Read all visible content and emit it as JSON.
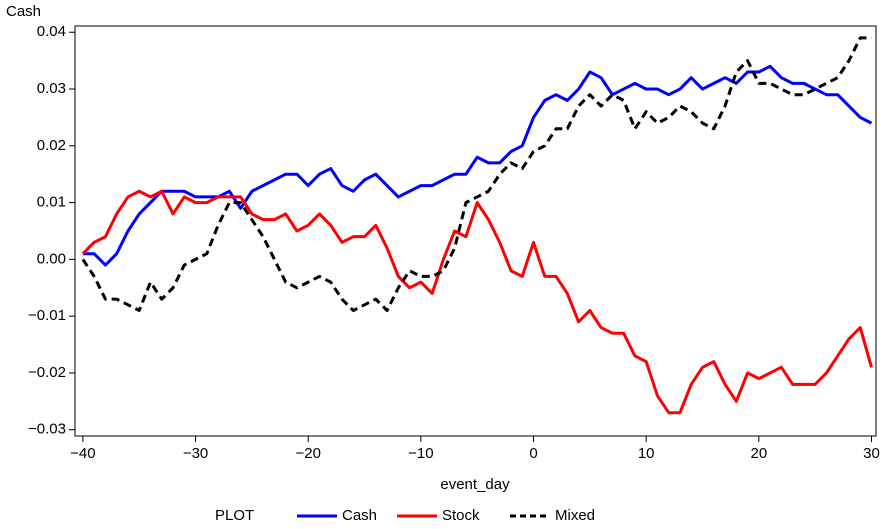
{
  "chart_data": {
    "type": "line",
    "y_label": "Cash",
    "x_label": "event_day",
    "legend_title": "PLOT",
    "x": [
      -40,
      -39,
      -38,
      -37,
      -36,
      -35,
      -34,
      -33,
      -32,
      -31,
      -30,
      -29,
      -28,
      -27,
      -26,
      -25,
      -24,
      -23,
      -22,
      -21,
      -20,
      -19,
      -18,
      -17,
      -16,
      -15,
      -14,
      -13,
      -12,
      -11,
      -10,
      -9,
      -8,
      -7,
      -6,
      -5,
      -4,
      -3,
      -2,
      -1,
      0,
      1,
      2,
      3,
      4,
      5,
      6,
      7,
      8,
      9,
      10,
      11,
      12,
      13,
      14,
      15,
      16,
      17,
      18,
      19,
      20,
      21,
      22,
      23,
      24,
      25,
      26,
      27,
      28,
      29,
      30
    ],
    "series": [
      {
        "name": "Cash",
        "color": "#0000ff",
        "dash": false,
        "values": [
          0.001,
          0.001,
          -0.001,
          0.001,
          0.005,
          0.008,
          0.01,
          0.012,
          0.012,
          0.012,
          0.011,
          0.011,
          0.011,
          0.012,
          0.009,
          0.012,
          0.013,
          0.014,
          0.015,
          0.015,
          0.013,
          0.015,
          0.016,
          0.013,
          0.012,
          0.014,
          0.015,
          0.013,
          0.011,
          0.012,
          0.013,
          0.013,
          0.014,
          0.015,
          0.015,
          0.018,
          0.017,
          0.017,
          0.019,
          0.02,
          0.025,
          0.028,
          0.029,
          0.028,
          0.03,
          0.033,
          0.032,
          0.029,
          0.03,
          0.031,
          0.03,
          0.03,
          0.029,
          0.03,
          0.032,
          0.03,
          0.031,
          0.032,
          0.031,
          0.033,
          0.033,
          0.034,
          0.032,
          0.031,
          0.031,
          0.03,
          0.029,
          0.029,
          0.027,
          0.025,
          0.024
        ]
      },
      {
        "name": "Stock",
        "color": "#ff0000",
        "dash": false,
        "values": [
          0.001,
          0.003,
          0.004,
          0.008,
          0.011,
          0.012,
          0.011,
          0.012,
          0.008,
          0.011,
          0.01,
          0.01,
          0.011,
          0.011,
          0.011,
          0.008,
          0.007,
          0.007,
          0.008,
          0.005,
          0.006,
          0.008,
          0.006,
          0.003,
          0.004,
          0.004,
          0.006,
          0.002,
          -0.003,
          -0.005,
          -0.004,
          -0.006,
          0.0,
          0.005,
          0.004,
          0.01,
          0.007,
          0.003,
          -0.002,
          -0.003,
          0.003,
          -0.003,
          -0.003,
          -0.006,
          -0.011,
          -0.009,
          -0.012,
          -0.013,
          -0.013,
          -0.017,
          -0.018,
          -0.024,
          -0.027,
          -0.027,
          -0.022,
          -0.019,
          -0.018,
          -0.022,
          -0.025,
          -0.02,
          -0.021,
          -0.02,
          -0.019,
          -0.022,
          -0.022,
          -0.022,
          -0.02,
          -0.017,
          -0.014,
          -0.012,
          -0.019
        ]
      },
      {
        "name": "Mixed",
        "color": "#000000",
        "dash": true,
        "values": [
          0.0,
          -0.003,
          -0.007,
          -0.007,
          -0.008,
          -0.009,
          -0.004,
          -0.007,
          -0.005,
          -0.001,
          0.0,
          0.001,
          0.006,
          0.01,
          0.01,
          0.007,
          0.004,
          0.0,
          -0.004,
          -0.005,
          -0.004,
          -0.003,
          -0.004,
          -0.007,
          -0.009,
          -0.008,
          -0.007,
          -0.009,
          -0.005,
          -0.002,
          -0.003,
          -0.003,
          -0.002,
          0.002,
          0.01,
          0.011,
          0.012,
          0.015,
          0.017,
          0.016,
          0.019,
          0.02,
          0.023,
          0.023,
          0.027,
          0.029,
          0.027,
          0.029,
          0.028,
          0.023,
          0.026,
          0.024,
          0.025,
          0.027,
          0.026,
          0.024,
          0.023,
          0.027,
          0.033,
          0.035,
          0.031,
          0.031,
          0.03,
          0.029,
          0.029,
          0.03,
          0.031,
          0.032,
          0.035,
          0.039,
          0.039
        ]
      }
    ],
    "xlim": [
      -40.7,
      30.4
    ],
    "ylim": [
      -0.0311,
      0.0411
    ],
    "xticks": [
      {
        "value": -40,
        "label": "−40"
      },
      {
        "value": -30,
        "label": "−30"
      },
      {
        "value": -20,
        "label": "−20"
      },
      {
        "value": -10,
        "label": "−10"
      },
      0,
      10,
      20,
      30
    ],
    "yticks": [
      {
        "value": -0.03,
        "label": "−0.03"
      },
      {
        "value": -0.02,
        "label": "−0.02"
      },
      {
        "value": -0.01,
        "label": "−0.01"
      },
      {
        "value": 0,
        "label": "0.00"
      },
      0.01,
      0.02,
      0.03,
      0.04
    ],
    "grid": false
  }
}
